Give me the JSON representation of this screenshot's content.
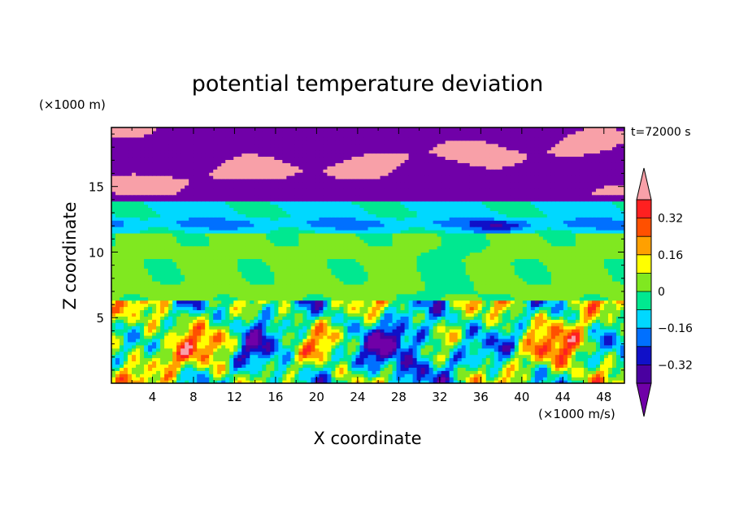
{
  "chart_data": {
    "type": "heatmap",
    "title": "potential temperature deviation",
    "xlabel": "X coordinate",
    "ylabel": "Z coordinate",
    "x_unit": "(×1000 m/s)",
    "y_unit": "(×1000 m)",
    "time_label": "t=72000 s",
    "xlim": [
      0,
      50
    ],
    "ylim": [
      0,
      19.5
    ],
    "x_ticks": [
      "4",
      "8",
      "12",
      "16",
      "20",
      "24",
      "28",
      "32",
      "36",
      "40",
      "44",
      "48"
    ],
    "y_ticks": [
      "5",
      "10",
      "15"
    ],
    "colorbar": {
      "levels": [
        -0.4,
        -0.32,
        -0.24,
        -0.16,
        -0.08,
        0,
        0.08,
        0.16,
        0.24,
        0.32,
        0.4
      ],
      "tick_labels": [
        "−0.32",
        "−0.16",
        "0",
        "0.16",
        "0.32"
      ],
      "colors": [
        "#7000a8",
        "#4a00a0",
        "#1010c8",
        "#0070ff",
        "#00d8ff",
        "#00e890",
        "#80e820",
        "#ffff00",
        "#ffa000",
        "#ff5000",
        "#ff2020",
        "#f8a0a8"
      ]
    },
    "regions": [
      {
        "z_range": [
          0,
          6.3
        ],
        "pattern": "turbulent convective layer",
        "dominant_values": [
          -0.36,
          0.32
        ]
      },
      {
        "z_range": [
          6.3,
          11.5
        ],
        "pattern": "near zero",
        "dominant_values": [
          0,
          0.08
        ]
      },
      {
        "z_range": [
          11.5,
          13.8
        ],
        "pattern": "weak negative band",
        "dominant_values": [
          -0.16,
          -0.08
        ]
      },
      {
        "z_range": [
          13.8,
          19.5
        ],
        "pattern": "strong negative with positive streaks",
        "dominant_values": [
          -0.4,
          0.4
        ]
      }
    ]
  }
}
